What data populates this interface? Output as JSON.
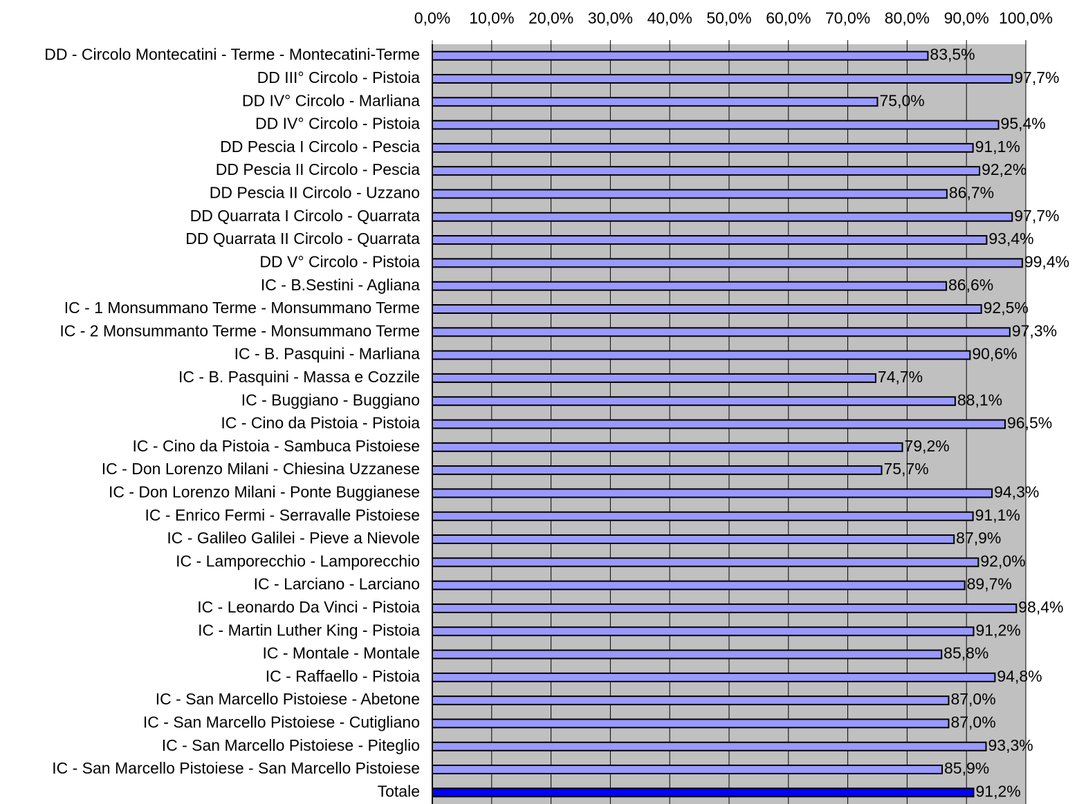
{
  "chart_data": {
    "type": "barh",
    "categories": [
      "DD -  Circolo Montecatini - Terme - Montecatini-Terme",
      "DD III° Circolo - Pistoia",
      "DD IV° Circolo - Marliana",
      "DD IV° Circolo - Pistoia",
      "DD Pescia I Circolo - Pescia",
      "DD Pescia II Circolo - Pescia",
      "DD Pescia II Circolo - Uzzano",
      "DD Quarrata I Circolo - Quarrata",
      "DD Quarrata II Circolo - Quarrata",
      "DD V° Circolo - Pistoia",
      "IC -  B.Sestini - Agliana",
      "IC - 1 Monsummano Terme - Monsummano Terme",
      "IC - 2 Monsummanto Terme - Monsummano Terme",
      "IC - B. Pasquini - Marliana",
      "IC - B. Pasquini - Massa e Cozzile",
      "IC - Buggiano - Buggiano",
      "IC - Cino da Pistoia - Pistoia",
      "IC - Cino da Pistoia - Sambuca Pistoiese",
      "IC - Don Lorenzo Milani - Chiesina Uzzanese",
      "IC - Don Lorenzo Milani - Ponte Buggianese",
      "IC - Enrico Fermi - Serravalle Pistoiese",
      "IC - Galileo Galilei - Pieve a Nievole",
      "IC - Lamporecchio - Lamporecchio",
      "IC - Larciano - Larciano",
      "IC - Leonardo Da Vinci - Pistoia",
      "IC - Martin Luther King - Pistoia",
      "IC - Montale - Montale",
      "IC - Raffaello - Pistoia",
      "IC - San Marcello Pistoiese - Abetone",
      "IC - San Marcello Pistoiese - Cutigliano",
      "IC - San Marcello Pistoiese - Piteglio",
      "IC - San Marcello Pistoiese - San Marcello Pistoiese",
      "Totale"
    ],
    "values": [
      83.5,
      97.7,
      75.0,
      95.4,
      91.1,
      92.2,
      86.7,
      97.7,
      93.4,
      99.4,
      86.6,
      92.5,
      97.3,
      90.6,
      74.7,
      88.1,
      96.5,
      79.2,
      75.7,
      94.3,
      91.1,
      87.9,
      92.0,
      89.7,
      98.4,
      91.2,
      85.8,
      94.8,
      87.0,
      87.0,
      93.3,
      85.9,
      91.2
    ],
    "value_labels": [
      "83,5%",
      "97,7%",
      "75,0%",
      "95,4%",
      "91,1%",
      "92,2%",
      "86,7%",
      "97,7%",
      "93,4%",
      "99,4%",
      "86,6%",
      "92,5%",
      "97,3%",
      "90,6%",
      "74,7%",
      "88,1%",
      "96,5%",
      "79,2%",
      "75,7%",
      "94,3%",
      "91,1%",
      "87,9%",
      "92,0%",
      "89,7%",
      "98,4%",
      "91,2%",
      "85,8%",
      "94,8%",
      "87,0%",
      "87,0%",
      "93,3%",
      "85,9%",
      "91,2%"
    ],
    "colors": [
      "#9999ff",
      "#9999ff",
      "#9999ff",
      "#9999ff",
      "#9999ff",
      "#9999ff",
      "#9999ff",
      "#9999ff",
      "#9999ff",
      "#9999ff",
      "#9999ff",
      "#9999ff",
      "#9999ff",
      "#9999ff",
      "#9999ff",
      "#9999ff",
      "#9999ff",
      "#9999ff",
      "#9999ff",
      "#9999ff",
      "#9999ff",
      "#9999ff",
      "#9999ff",
      "#9999ff",
      "#9999ff",
      "#9999ff",
      "#9999ff",
      "#9999ff",
      "#9999ff",
      "#9999ff",
      "#9999ff",
      "#9999ff",
      "#0000ff"
    ],
    "xlim": [
      0,
      100
    ],
    "xticks": [
      {
        "value": 0,
        "label": "0,0%"
      },
      {
        "value": 10,
        "label": "10,0%"
      },
      {
        "value": 20,
        "label": "20,0%"
      },
      {
        "value": 30,
        "label": "30,0%"
      },
      {
        "value": 40,
        "label": "40,0%"
      },
      {
        "value": 50,
        "label": "50,0%"
      },
      {
        "value": 60,
        "label": "60,0%"
      },
      {
        "value": 70,
        "label": "70,0%"
      },
      {
        "value": 80,
        "label": "80,0%"
      },
      {
        "value": 90,
        "label": "90,0%"
      },
      {
        "value": 100,
        "label": "100,0%"
      }
    ],
    "grid": true
  }
}
